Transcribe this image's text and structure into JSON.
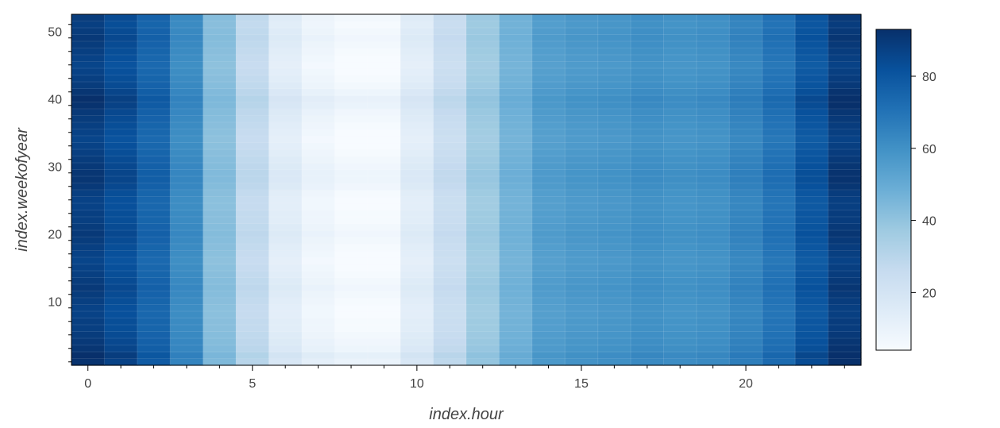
{
  "chart_data": {
    "type": "heatmap",
    "title": "",
    "xlabel": "index.hour",
    "ylabel": "index.weekofyear",
    "x": [
      0,
      1,
      2,
      3,
      4,
      5,
      6,
      7,
      8,
      9,
      10,
      11,
      12,
      13,
      14,
      15,
      16,
      17,
      18,
      19,
      20,
      21,
      22,
      23
    ],
    "y_range": [
      1,
      52
    ],
    "x_ticks": [
      0,
      5,
      10,
      15,
      20
    ],
    "x_tick_labels": [
      "0",
      "5",
      "10",
      "15",
      "20"
    ],
    "y_ticks": [
      10,
      20,
      30,
      40,
      50
    ],
    "y_tick_labels": [
      "10",
      "20",
      "30",
      "40",
      "50"
    ],
    "colorbar": {
      "colormap": "Blues",
      "range": [
        4,
        93
      ],
      "ticks": [
        20,
        40,
        60,
        80
      ],
      "tick_labels": [
        "20",
        "40",
        "60",
        "80"
      ],
      "position": "right"
    },
    "hour_profile": [
      88,
      83,
      75,
      62,
      42,
      27,
      14,
      8,
      5,
      5,
      14,
      25,
      37,
      47,
      55,
      57,
      58,
      60,
      59,
      60,
      64,
      70,
      80,
      89
    ],
    "week_offsets": [
      4,
      6,
      3,
      2,
      1,
      0,
      0,
      -1,
      -1,
      0,
      1,
      2,
      1,
      0,
      -1,
      -2,
      -1,
      0,
      1,
      2,
      1,
      0,
      0,
      -1,
      -1,
      0,
      2,
      3,
      3,
      2,
      1,
      0,
      -1,
      -2,
      -1,
      0,
      1,
      2,
      4,
      5,
      3,
      1,
      0,
      -1,
      -2,
      -1,
      0,
      1,
      2,
      1,
      0,
      1
    ],
    "grid": false
  }
}
